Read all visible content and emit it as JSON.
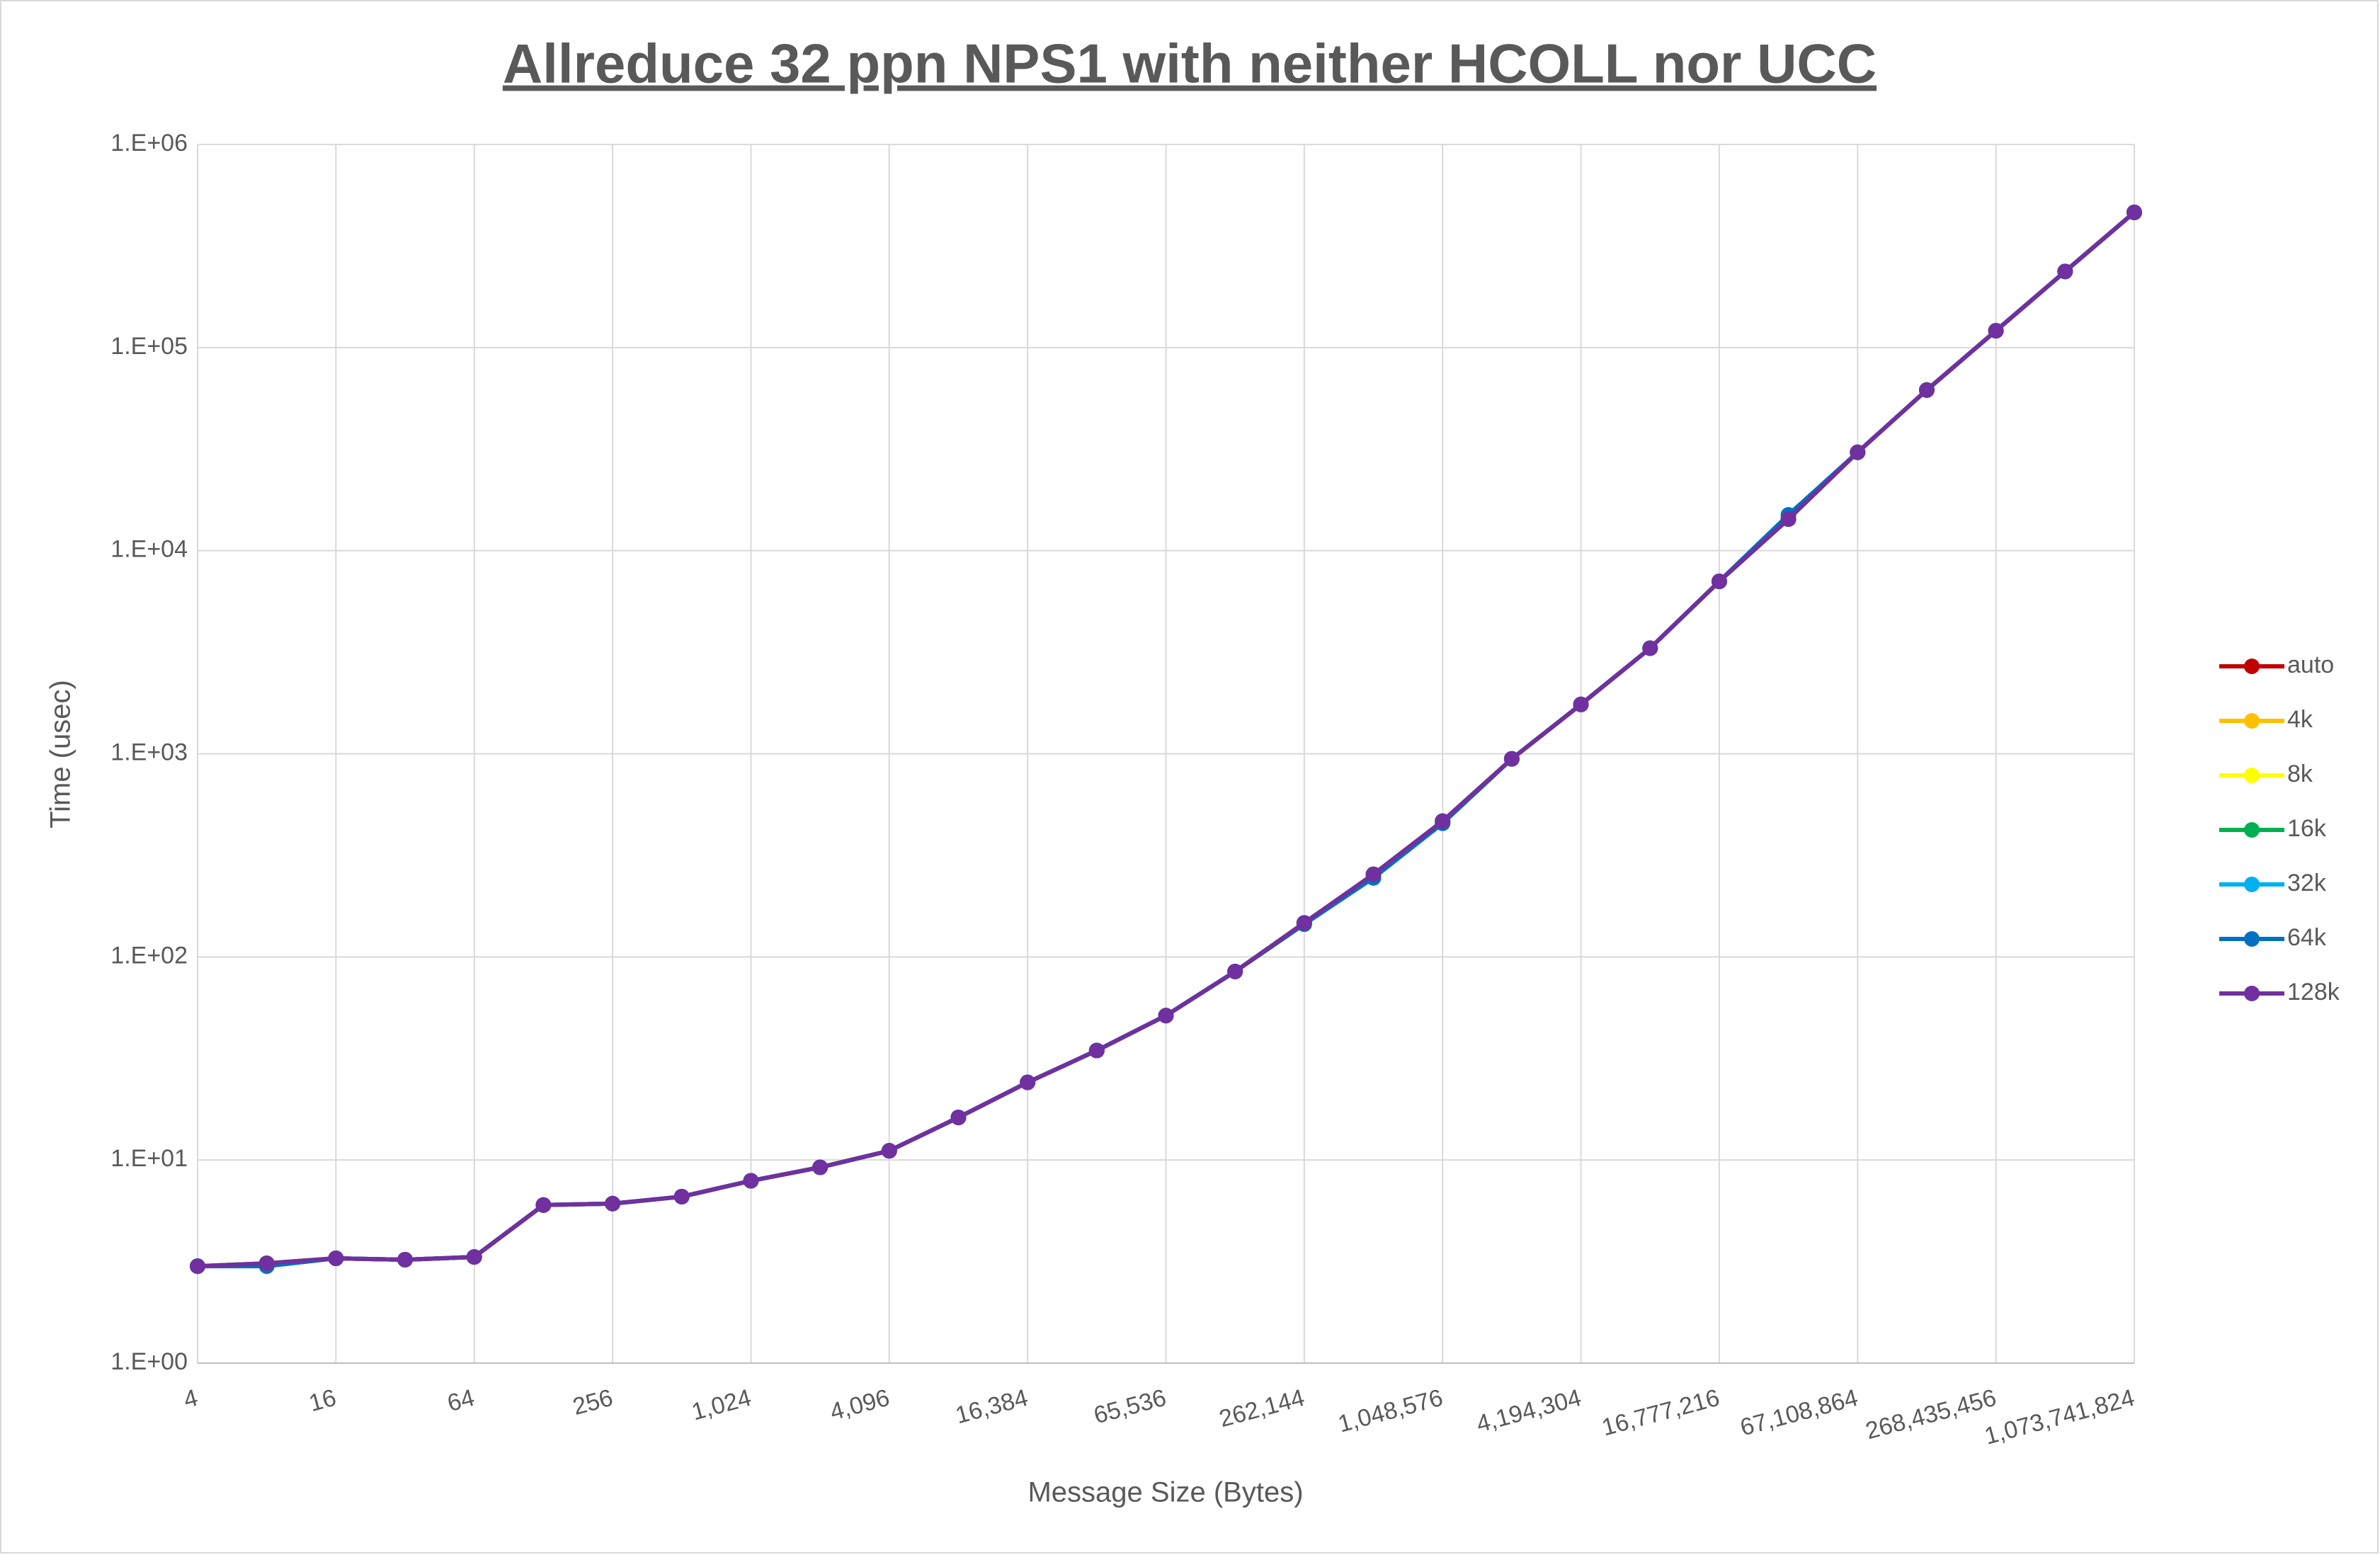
{
  "chart_data": {
    "type": "line",
    "title": "Allreduce 32 ppn NPS1 with neither HCOLL nor UCC",
    "x_label": "Message Size (Bytes)",
    "y_label": "Time (usec)",
    "x": [
      4,
      8,
      16,
      32,
      64,
      128,
      256,
      512,
      1024,
      2048,
      4096,
      8192,
      16384,
      32768,
      65536,
      131072,
      262144,
      524288,
      1048576,
      2097152,
      4194304,
      8388608,
      16777216,
      33554432,
      67108864,
      134217728,
      268435456,
      536870912,
      1073741824
    ],
    "x_log_base": 2,
    "y_log_base": 10,
    "xlim": [
      4,
      1073741824
    ],
    "xticks": [
      4,
      16,
      64,
      256,
      {
        "value": 1024,
        "label": "1,024"
      },
      {
        "value": 4096,
        "label": "4,096"
      },
      {
        "value": 16384,
        "label": "16,384"
      },
      {
        "value": 65536,
        "label": "65,536"
      },
      {
        "value": 262144,
        "label": "262,144"
      },
      {
        "value": 1048576,
        "label": "1,048,576"
      },
      {
        "value": 4194304,
        "label": "4,194,304"
      },
      {
        "value": 16777216,
        "label": "16,777,216"
      },
      {
        "value": 67108864,
        "label": "67,108,864"
      },
      {
        "value": 268435456,
        "label": "268,435,456"
      },
      {
        "value": 1073741824,
        "label": "1,073,741,824"
      }
    ],
    "ylim": [
      1,
      1000000
    ],
    "yticks": [
      {
        "value": 1,
        "label": "1.E+00"
      },
      {
        "value": 10,
        "label": "1.E+01"
      },
      {
        "value": 100,
        "label": "1.E+02"
      },
      {
        "value": 1000,
        "label": "1.E+03"
      },
      {
        "value": 10000,
        "label": "1.E+04"
      },
      {
        "value": 100000,
        "label": "1.E+05"
      },
      {
        "value": 1000000,
        "label": "1.E+06"
      }
    ],
    "grid": true,
    "legend": "right",
    "series": [
      {
        "name": "auto",
        "color": "#c00000",
        "values": [
          3.0,
          3.1,
          3.28,
          3.23,
          3.33,
          6.0,
          6.1,
          6.6,
          7.9,
          9.2,
          11.1,
          16.2,
          24.1,
          34.6,
          51.4,
          84.7,
          147,
          255,
          466,
          944,
          1750,
          3310,
          7060,
          14300,
          30500,
          61800,
          121000,
          237000,
          463000
        ]
      },
      {
        "name": "4k",
        "color": "#ffc000",
        "values": [
          3.0,
          3.1,
          3.28,
          3.23,
          3.33,
          6.0,
          6.1,
          6.6,
          7.9,
          9.2,
          11.1,
          16.2,
          24.1,
          34.6,
          51.4,
          84.7,
          147,
          255,
          466,
          944,
          1750,
          3310,
          7060,
          14300,
          30500,
          61800,
          121000,
          237000,
          463000
        ]
      },
      {
        "name": "8k",
        "color": "#ffff00",
        "values": [
          3.0,
          3.1,
          3.28,
          3.23,
          3.33,
          6.0,
          6.1,
          6.6,
          7.9,
          9.2,
          11.1,
          16.2,
          24.1,
          34.6,
          51.4,
          84.7,
          147,
          255,
          466,
          944,
          1750,
          3310,
          7060,
          14300,
          30500,
          61800,
          121000,
          237000,
          463000
        ]
      },
      {
        "name": "16k",
        "color": "#00b050",
        "values": [
          3.0,
          3.1,
          3.28,
          3.23,
          3.33,
          6.0,
          6.1,
          6.6,
          7.9,
          9.2,
          11.1,
          16.2,
          24.1,
          34.6,
          51.4,
          84.7,
          147,
          255,
          466,
          944,
          1750,
          3310,
          7060,
          14300,
          30500,
          61800,
          121000,
          237000,
          463000
        ]
      },
      {
        "name": "32k",
        "color": "#00b0f0",
        "values": [
          3.0,
          3.05,
          3.28,
          3.23,
          3.33,
          6.0,
          6.1,
          6.6,
          7.9,
          9.2,
          11.1,
          16.2,
          24.1,
          34.6,
          51.4,
          84.7,
          145,
          245,
          455,
          944,
          1750,
          3310,
          7060,
          15000,
          30500,
          61800,
          121000,
          237000,
          463000
        ]
      },
      {
        "name": "64k",
        "color": "#0070c0",
        "values": [
          3.0,
          3.0,
          3.28,
          3.23,
          3.33,
          6.0,
          6.1,
          6.6,
          7.9,
          9.2,
          11.1,
          16.2,
          24.1,
          34.6,
          51.4,
          84.7,
          145,
          245,
          455,
          944,
          1750,
          3310,
          7060,
          15000,
          30500,
          61800,
          121000,
          237000,
          463000
        ]
      },
      {
        "name": "128k",
        "color": "#7030a0",
        "values": [
          3.0,
          3.1,
          3.28,
          3.23,
          3.33,
          6.0,
          6.1,
          6.6,
          7.9,
          9.2,
          11.1,
          16.2,
          24.1,
          34.6,
          51.4,
          84.7,
          147,
          255,
          466,
          944,
          1750,
          3310,
          7060,
          14300,
          30500,
          61800,
          121000,
          237000,
          463000
        ]
      }
    ]
  }
}
